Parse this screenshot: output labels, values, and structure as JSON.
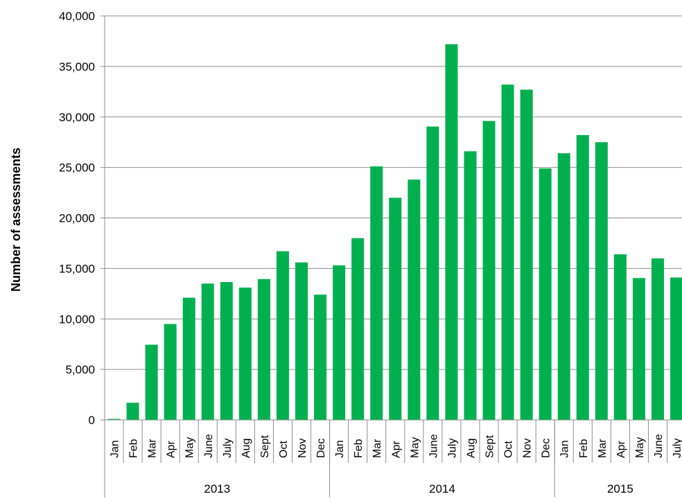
{
  "chart_data": {
    "type": "bar",
    "ylabel": "Number of assessments",
    "xlabel": "",
    "title": "",
    "ylim": [
      0,
      40000
    ],
    "yticks": [
      0,
      5000,
      10000,
      15000,
      20000,
      25000,
      30000,
      35000,
      40000
    ],
    "ytick_labels": [
      "0",
      "5,000",
      "10,000",
      "15,000",
      "20,000",
      "25,000",
      "30,000",
      "35,000",
      "40,000"
    ],
    "grid": true,
    "bar_color": "#00B050",
    "groups": [
      {
        "label": "2013",
        "categories": [
          "Jan",
          "Feb",
          "Mar",
          "Apr",
          "May",
          "June",
          "July",
          "Aug",
          "Sept",
          "Oct",
          "Nov",
          "Dec"
        ]
      },
      {
        "label": "2014",
        "categories": [
          "Jan",
          "Feb",
          "Mar",
          "Apr",
          "May",
          "June",
          "July",
          "Aug",
          "Sept",
          "Oct",
          "Nov",
          "Dec"
        ]
      },
      {
        "label": "2015",
        "categories": [
          "Jan",
          "Feb",
          "Mar",
          "Apr",
          "May",
          "June",
          "July"
        ]
      }
    ],
    "values": [
      100,
      1700,
      7450,
      9500,
      12100,
      13500,
      13650,
      13100,
      13950,
      16700,
      15600,
      12400,
      15300,
      18000,
      25100,
      22000,
      23800,
      29050,
      37200,
      26600,
      29600,
      33200,
      32700,
      24900,
      26400,
      28200,
      27500,
      16400,
      14050,
      16000,
      14100
    ]
  }
}
